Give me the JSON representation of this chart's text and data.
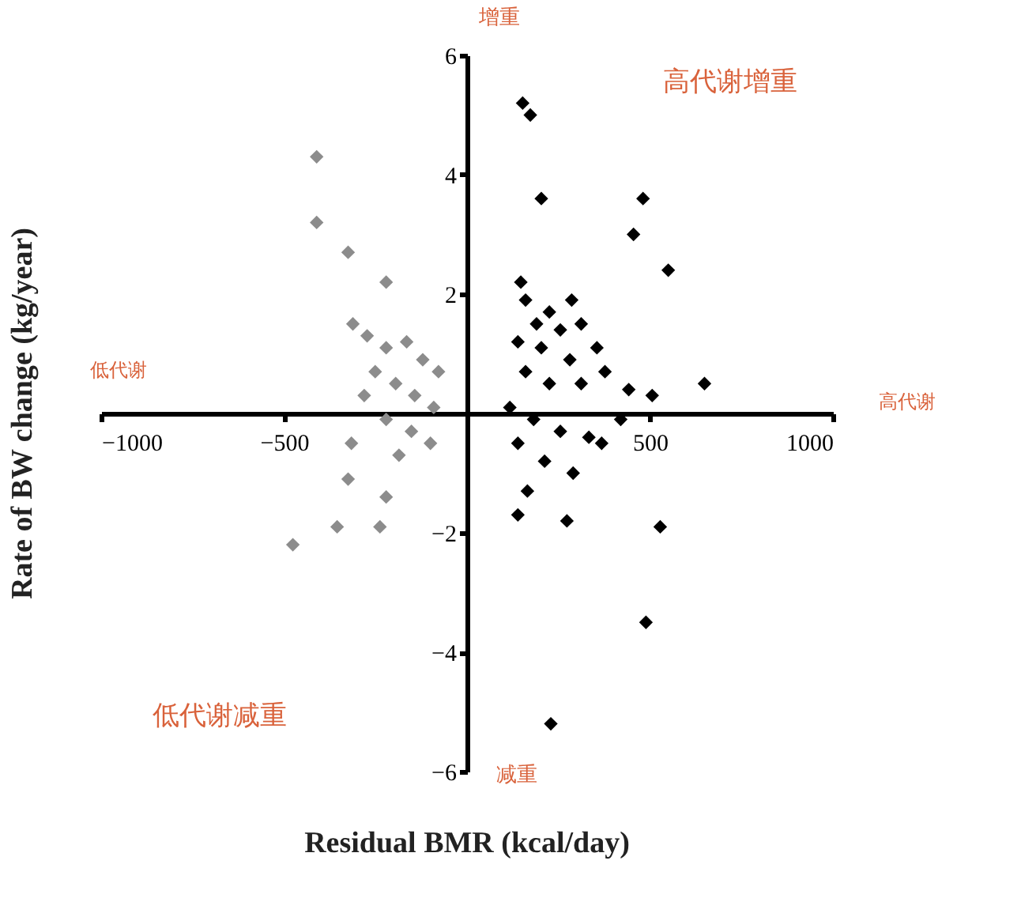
{
  "chart_data": {
    "type": "scatter",
    "xlabel": "Residual BMR (kcal/day)",
    "ylabel": "Rate of BW change (kg/year)",
    "annotations": [
      "增重",
      "高代谢增重",
      "低代谢",
      "高代谢",
      "低代谢减重",
      "减重"
    ],
    "xlim": [
      -1000,
      1000
    ],
    "xticks": [
      -1000,
      -500,
      500,
      1000
    ],
    "ylim": [
      -6,
      6
    ],
    "yticks": [
      -6,
      -4,
      -2,
      2,
      4,
      6
    ],
    "grid": false,
    "legend": false,
    "marker": "diamond",
    "series": [
      {
        "color": "#8c8c8c",
        "x": [
          -411,
          -411,
          -325,
          -221,
          -312,
          -273,
          -221,
          -165,
          -121,
          -78,
          -251,
          -195,
          -143,
          -91,
          -281,
          -221,
          -152,
          -100,
          -186,
          -316,
          -221,
          -238,
          -355,
          -476,
          -325
        ],
        "values": [
          4.3,
          3.2,
          2.7,
          2.2,
          1.5,
          1.3,
          1.1,
          1.2,
          0.9,
          0.7,
          0.7,
          0.5,
          0.3,
          0.1,
          0.3,
          -0.1,
          -0.3,
          -0.5,
          -0.7,
          -0.5,
          -1.4,
          -1.9,
          -1.9,
          -2.2,
          -1.1
        ]
      },
      {
        "color": "#000000",
        "x": [
          152,
          173,
          203,
          481,
          455,
          550,
          147,
          160,
          286,
          225,
          190,
          255,
          312,
          139,
          203,
          281,
          355,
          160,
          225,
          312,
          377,
          442,
          506,
          649,
          117,
          182,
          255,
          333,
          420,
          139,
          212,
          290,
          368,
          165,
          139,
          273,
          528,
          489,
          229
        ],
        "values": [
          5.2,
          5.0,
          3.6,
          3.6,
          3.0,
          2.4,
          2.2,
          1.9,
          1.9,
          1.7,
          1.5,
          1.4,
          1.5,
          1.2,
          1.1,
          0.9,
          1.1,
          0.7,
          0.5,
          0.5,
          0.7,
          0.4,
          0.3,
          0.5,
          0.1,
          -0.1,
          -0.3,
          -0.4,
          -0.1,
          -0.5,
          -0.8,
          -1.0,
          -0.5,
          -1.3,
          -1.7,
          -1.8,
          -1.9,
          -3.5,
          -5.2
        ]
      }
    ]
  }
}
